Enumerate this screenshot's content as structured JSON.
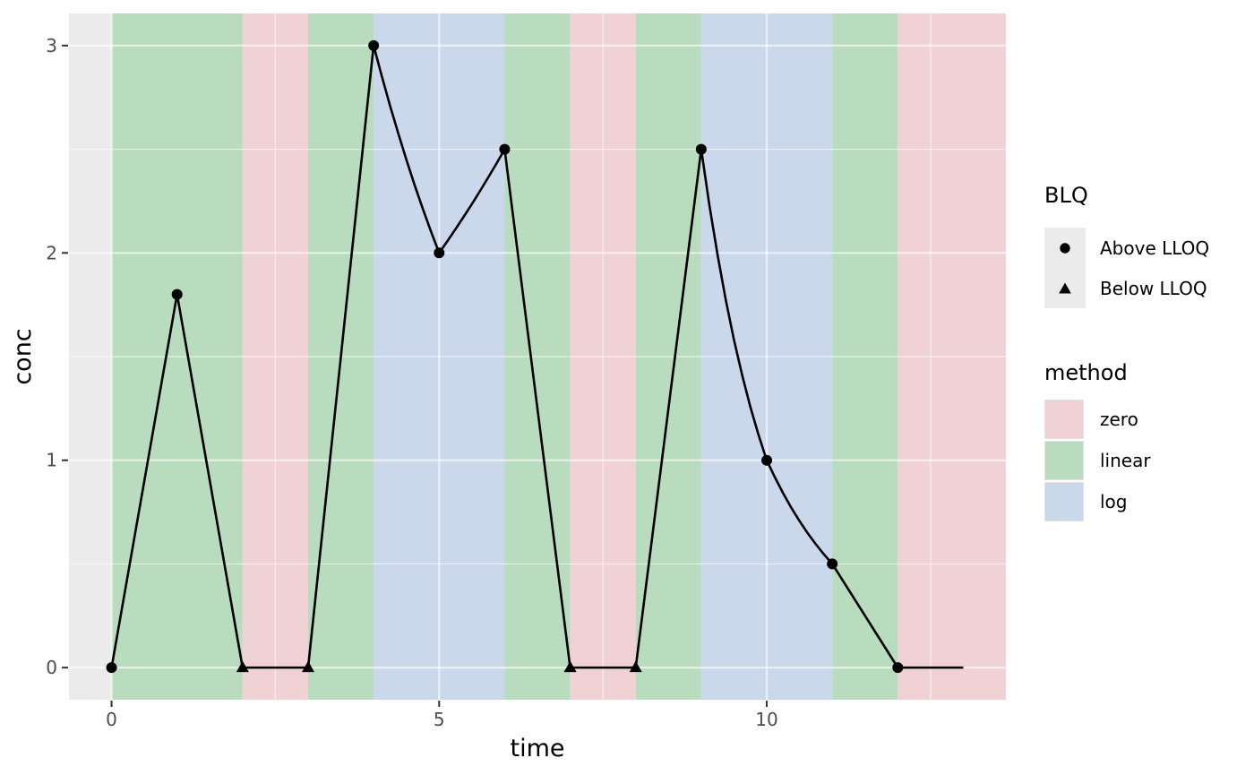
{
  "legend": {
    "blq": {
      "title": "BLQ",
      "items": [
        {
          "label": "Above LLOQ",
          "marker": "circle"
        },
        {
          "label": "Below LLOQ",
          "marker": "triangle"
        }
      ]
    },
    "method": {
      "title": "method",
      "items": [
        {
          "label": "zero",
          "color_key": "zero"
        },
        {
          "label": "linear",
          "color_key": "linear"
        },
        {
          "label": "log",
          "color_key": "log"
        }
      ]
    }
  },
  "chart_data": {
    "type": "line",
    "title": "",
    "xlabel": "time",
    "ylabel": "conc",
    "x_ticks": [
      0,
      5,
      10
    ],
    "x_minor_ticks": [
      2.5,
      7.5,
      12.5
    ],
    "y_ticks": [
      0,
      1,
      2,
      3
    ],
    "y_minor_ticks": [
      0.5,
      1.5,
      2.5
    ],
    "xlim": [
      -0.65,
      13.65
    ],
    "ylim": [
      -0.155,
      3.155
    ],
    "grid": "on",
    "legend_position": "right",
    "points": [
      {
        "t": 0,
        "conc": 0,
        "blq": false
      },
      {
        "t": 1,
        "conc": 1.8,
        "blq": false
      },
      {
        "t": 2,
        "conc": 0,
        "blq": true
      },
      {
        "t": 3,
        "conc": 0,
        "blq": true
      },
      {
        "t": 4,
        "conc": 3,
        "blq": false
      },
      {
        "t": 5,
        "conc": 2,
        "blq": false
      },
      {
        "t": 6,
        "conc": 2.5,
        "blq": false
      },
      {
        "t": 7,
        "conc": 0,
        "blq": true
      },
      {
        "t": 8,
        "conc": 0,
        "blq": true
      },
      {
        "t": 9,
        "conc": 2.5,
        "blq": false
      },
      {
        "t": 10,
        "conc": 1,
        "blq": false
      },
      {
        "t": 11,
        "conc": 0.5,
        "blq": false
      },
      {
        "t": 12,
        "conc": 0,
        "blq": false
      }
    ],
    "line_end": {
      "t": 13,
      "conc": 0
    },
    "bands": [
      {
        "t0": 0,
        "t1": 2,
        "method": "linear"
      },
      {
        "t0": 2,
        "t1": 3,
        "method": "zero"
      },
      {
        "t0": 3,
        "t1": 4,
        "method": "linear"
      },
      {
        "t0": 4,
        "t1": 6,
        "method": "log"
      },
      {
        "t0": 6,
        "t1": 7,
        "method": "linear"
      },
      {
        "t0": 7,
        "t1": 8,
        "method": "zero"
      },
      {
        "t0": 8,
        "t1": 9,
        "method": "linear"
      },
      {
        "t0": 9,
        "t1": 11,
        "method": "log"
      },
      {
        "t0": 11,
        "t1": 12,
        "method": "linear"
      },
      {
        "t0": 12,
        "t1": 13.65,
        "method": "zero"
      }
    ],
    "colors": {
      "zero": "#f0d2d5",
      "linear": "#b9dcbe",
      "log": "#cbd8ec",
      "panel": "#ebebeb",
      "grid": "rgba(255,255,255,0.62)",
      "line": "#000000",
      "marker": "#000000",
      "tick": "#333333",
      "tick_label": "#4d4d4d",
      "axis_title": "#000000"
    }
  }
}
